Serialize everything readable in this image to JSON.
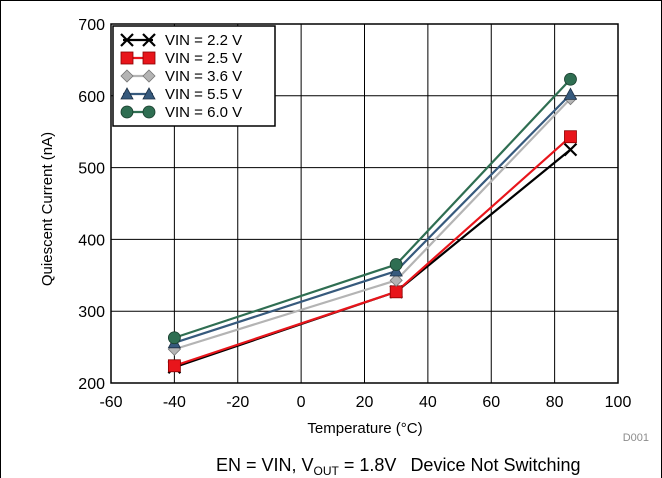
{
  "chart_data": {
    "type": "line",
    "title": "",
    "xlabel": "Temperature (°C)",
    "ylabel": "Quiescent Current (nA)",
    "xlim": [
      -60,
      100
    ],
    "ylim": [
      200,
      700
    ],
    "xticks": [
      "-60",
      "-40",
      "-20",
      "0",
      "20",
      "40",
      "60",
      "80",
      "100"
    ],
    "yticks": [
      "200",
      "300",
      "400",
      "500",
      "600",
      "700"
    ],
    "x": [
      -40,
      30,
      85
    ],
    "grid": true,
    "legend_position": "top-left",
    "series": [
      {
        "name": "VIN = 2.2 V",
        "values": [
          222,
          327,
          525
        ],
        "color": "#000000",
        "marker": "x"
      },
      {
        "name": "VIN = 2.5 V",
        "values": [
          224,
          327,
          543
        ],
        "color": "#e8151b",
        "marker": "square"
      },
      {
        "name": "VIN = 3.6 V",
        "values": [
          247,
          343,
          596
        ],
        "color": "#b4b4b4",
        "marker": "diamond"
      },
      {
        "name": "VIN = 5.5 V",
        "values": [
          256,
          356,
          602
        ],
        "color": "#375a7d",
        "marker": "triangle"
      },
      {
        "name": "VIN = 6.0 V",
        "values": [
          263,
          365,
          623
        ],
        "color": "#2f6e52",
        "marker": "circle"
      }
    ],
    "code": "D001"
  },
  "footer": {
    "cond_prefix": "EN = VIN, V",
    "cond_sub": "OUT",
    "cond_suffix": " = 1.8V",
    "note": "Device Not Switching"
  }
}
